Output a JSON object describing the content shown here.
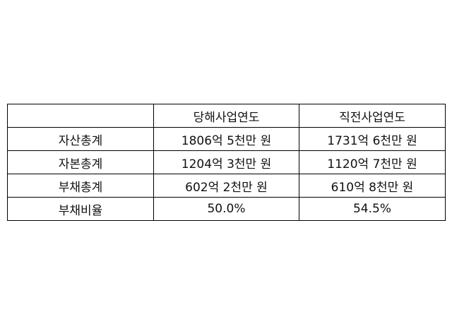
{
  "table": {
    "headers": [
      "",
      "당해사업연도",
      "직전사업연도"
    ],
    "rows": [
      [
        "자산총계",
        "1806억 5천만 원",
        "1731억 6천만 원"
      ],
      [
        "자본총계",
        "1204억 3천만 원",
        "1120억 7천만 원"
      ],
      [
        "부채총계",
        "602억 2천만 원",
        "610억 8천만 원"
      ],
      [
        "부채비율",
        "50.0%",
        "54.5%"
      ]
    ]
  }
}
